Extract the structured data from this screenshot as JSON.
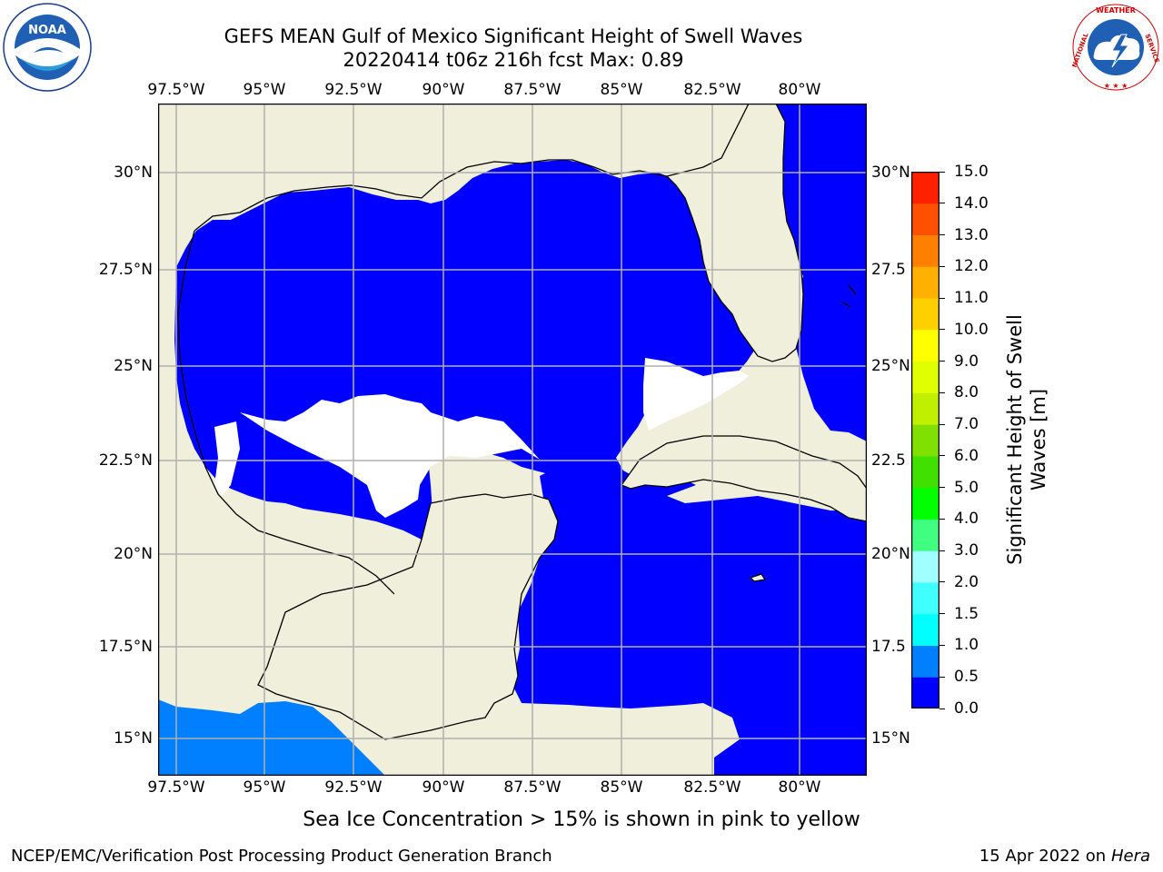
{
  "header": {
    "title_line1": "GEFS MEAN Gulf of Mexico Significant Height of Swell Waves",
    "title_line2": "20220414 t06z 216h fcst   Max: 0.89"
  },
  "logos": {
    "noaa": {
      "center_text": "NOAA",
      "ring_text": "NATIONAL OCEANIC AND ATMOSPHERIC ADMINISTRATION · U.S. DEPARTMENT OF COMMERCE"
    },
    "nws": {
      "ring_text": "NATIONAL WEATHER SERVICE"
    }
  },
  "map": {
    "lon_ticks_top": [
      "97.5°W",
      "95°W",
      "92.5°W",
      "90°W",
      "87.5°W",
      "85°W",
      "82.5°W",
      "80°W"
    ],
    "lon_ticks_bottom": [
      "97.5°W",
      "95°W",
      "92.5°W",
      "90°W",
      "87.5°W",
      "85°W",
      "82.5°W",
      "80°W"
    ],
    "lat_ticks_left": [
      "30°N",
      "27.5°N",
      "25°N",
      "22.5°N",
      "20°N",
      "17.5°N",
      "15°N"
    ],
    "lat_ticks_right": [
      "30°N",
      "27.5",
      "25°N",
      "22.5",
      "20°N",
      "17.5",
      "15°N"
    ],
    "colors": {
      "land": "#efefdc",
      "ocean_lowest": "#0000ff",
      "ocean_second": "#0080ff",
      "no_data": "#ffffff",
      "grid": "#b0b0b0"
    }
  },
  "colorbar": {
    "label": "Significant Height of Swell Waves [m]",
    "label_line1": "Significant Height of Swell",
    "label_line2": "Waves [m]",
    "ticks": [
      "0.0",
      "0.5",
      "1.0",
      "1.5",
      "2.0",
      "3.0",
      "4.0",
      "5.0",
      "6.0",
      "7.0",
      "8.0",
      "9.0",
      "10.0",
      "11.0",
      "12.0",
      "13.0",
      "14.0",
      "15.0"
    ],
    "colors": [
      "#0000ff",
      "#0080ff",
      "#00ffff",
      "#40ffff",
      "#a0ffff",
      "#40ff80",
      "#00ff00",
      "#40e000",
      "#80e000",
      "#c0f000",
      "#e0ff00",
      "#ffff00",
      "#ffd000",
      "#ffb000",
      "#ff8000",
      "#ff5000",
      "#ff2000"
    ]
  },
  "note": "Sea Ice Concentration > 15% is shown in pink to yellow",
  "footer": {
    "left": "NCEP/EMC/Verification Post Processing Product Generation Branch",
    "date": "15 Apr 2022 on ",
    "host": "Hera"
  }
}
